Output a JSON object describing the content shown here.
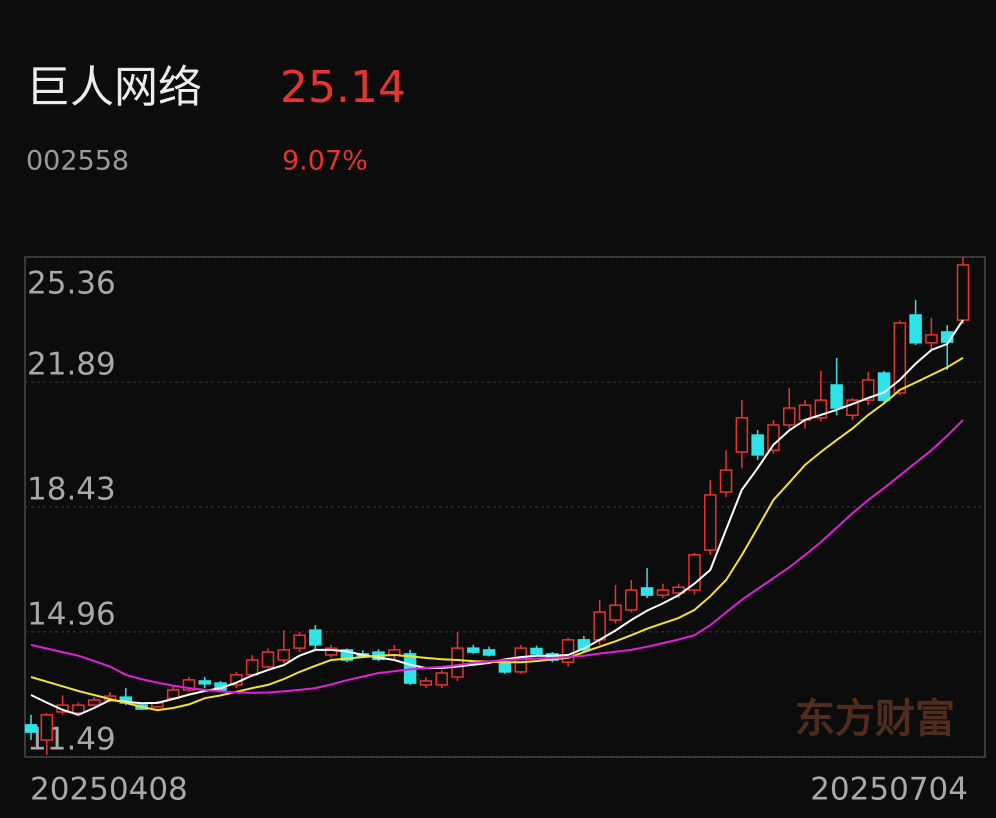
{
  "header": {
    "name": "巨人网络",
    "price": "25.14",
    "code": "002558",
    "change": "9.07%"
  },
  "chart_data": {
    "type": "candlestick",
    "watermark": "东方财富",
    "ylim": [
      11.49,
      25.36
    ],
    "yticks": [
      11.49,
      14.96,
      18.43,
      21.89,
      25.36
    ],
    "grid": true,
    "up_color": "#e8332e",
    "down_color": "#2fe3e8",
    "categories": [
      "20250408",
      null,
      null,
      null,
      null,
      null,
      null,
      null,
      null,
      null,
      null,
      null,
      null,
      null,
      null,
      null,
      null,
      null,
      null,
      null,
      null,
      null,
      null,
      null,
      null,
      null,
      null,
      null,
      null,
      null,
      null,
      null,
      null,
      null,
      null,
      null,
      null,
      null,
      null,
      null,
      null,
      null,
      null,
      null,
      null,
      null,
      null,
      null,
      null,
      null,
      null,
      null,
      null,
      null,
      null,
      null,
      null,
      null,
      null,
      "20250704"
    ],
    "open": [
      12.38,
      11.96,
      12.74,
      12.71,
      12.93,
      13.07,
      13.15,
      12.93,
      12.88,
      13.12,
      13.35,
      13.6,
      13.54,
      13.49,
      13.77,
      13.99,
      14.18,
      14.51,
      15.01,
      14.32,
      14.46,
      14.35,
      14.4,
      14.32,
      14.35,
      13.49,
      13.49,
      13.71,
      14.51,
      14.46,
      14.1,
      13.85,
      14.5,
      14.35,
      14.12,
      14.74,
      14.74,
      15.29,
      15.57,
      16.18,
      15.98,
      16.04,
      16.12,
      17.23,
      18.84,
      19.95,
      20.42,
      20.0,
      20.7,
      20.84,
      20.9,
      21.81,
      20.97,
      21.39,
      22.14,
      21.59,
      23.75,
      22.98,
      23.28,
      23.61
    ],
    "high": [
      12.66,
      12.7,
      13.2,
      13.0,
      13.15,
      13.29,
      13.4,
      12.95,
      13.05,
      13.49,
      13.71,
      13.71,
      13.6,
      13.85,
      14.32,
      14.5,
      15.0,
      14.96,
      15.15,
      14.6,
      14.5,
      14.45,
      14.48,
      14.6,
      14.46,
      13.7,
      13.9,
      14.96,
      14.6,
      14.55,
      14.15,
      14.6,
      14.58,
      14.4,
      14.8,
      14.85,
      15.85,
      16.26,
      16.4,
      16.73,
      16.3,
      16.3,
      17.15,
      19.17,
      20.0,
      21.39,
      20.56,
      20.84,
      21.73,
      21.39,
      22.2,
      22.56,
      21.45,
      22.17,
      22.2,
      23.6,
      24.17,
      23.67,
      23.47,
      25.36
    ],
    "low": [
      11.96,
      11.55,
      12.66,
      12.68,
      12.9,
      13.0,
      12.93,
      12.8,
      12.85,
      13.07,
      13.3,
      13.4,
      13.3,
      13.4,
      13.7,
      13.95,
      14.1,
      14.4,
      14.46,
      14.25,
      14.12,
      14.25,
      14.15,
      14.2,
      13.49,
      13.4,
      13.4,
      13.6,
      14.35,
      14.28,
      13.8,
      13.8,
      14.3,
      14.12,
      14.0,
      14.4,
      14.6,
      15.2,
      15.5,
      15.9,
      15.9,
      15.9,
      16.0,
      17.1,
      18.7,
      19.5,
      19.73,
      19.9,
      20.6,
      20.6,
      20.8,
      20.97,
      20.84,
      21.25,
      21.3,
      21.53,
      22.92,
      22.78,
      22.23,
      23.5
    ],
    "close": [
      12.18,
      12.66,
      12.93,
      12.93,
      13.07,
      13.18,
      12.99,
      12.82,
      12.99,
      13.35,
      13.63,
      13.52,
      13.35,
      13.77,
      14.18,
      14.4,
      14.46,
      14.87,
      14.6,
      14.51,
      14.18,
      14.3,
      14.2,
      14.46,
      13.54,
      13.6,
      13.82,
      14.51,
      14.4,
      14.32,
      13.85,
      14.51,
      14.35,
      14.18,
      14.74,
      14.46,
      15.51,
      15.7,
      16.12,
      15.98,
      16.12,
      16.2,
      17.1,
      18.76,
      19.45,
      20.9,
      19.87,
      20.7,
      21.17,
      21.25,
      21.39,
      21.17,
      21.39,
      21.95,
      21.39,
      23.53,
      22.98,
      23.2,
      23.0,
      25.14
    ],
    "series": [
      {
        "color": "#ffffff",
        "values": [
          13.21,
          13.0,
          12.8,
          12.66,
          12.85,
          13.07,
          13.02,
          12.98,
          12.99,
          13.1,
          13.22,
          13.32,
          13.4,
          13.55,
          13.75,
          13.9,
          14.04,
          14.3,
          14.46,
          14.46,
          14.42,
          14.32,
          14.25,
          14.18,
          14.05,
          13.96,
          13.96,
          14.0,
          14.05,
          14.1,
          14.2,
          14.26,
          14.3,
          14.3,
          14.32,
          14.5,
          14.74,
          15.0,
          15.29,
          15.55,
          15.75,
          15.98,
          16.3,
          16.68,
          17.8,
          18.9,
          19.5,
          20.15,
          20.55,
          20.84,
          20.98,
          21.12,
          21.28,
          21.45,
          21.6,
          21.95,
          22.4,
          22.78,
          22.95,
          23.61
        ]
      },
      {
        "color": "#f2e230",
        "values": [
          13.71,
          13.58,
          13.45,
          13.32,
          13.21,
          13.1,
          12.99,
          12.88,
          12.79,
          12.85,
          12.95,
          13.12,
          13.2,
          13.3,
          13.4,
          13.49,
          13.65,
          13.85,
          14.02,
          14.18,
          14.22,
          14.26,
          14.3,
          14.32,
          14.28,
          14.24,
          14.2,
          14.18,
          14.15,
          14.13,
          14.12,
          14.12,
          14.15,
          14.2,
          14.24,
          14.4,
          14.55,
          14.7,
          14.87,
          15.05,
          15.2,
          15.35,
          15.57,
          15.95,
          16.4,
          17.09,
          17.85,
          18.62,
          19.1,
          19.59,
          19.95,
          20.28,
          20.6,
          20.98,
          21.3,
          21.67,
          21.88,
          22.09,
          22.3,
          22.56
        ]
      },
      {
        "color": "#e020d8",
        "values": [
          14.6,
          14.5,
          14.4,
          14.3,
          14.15,
          14.0,
          13.77,
          13.65,
          13.55,
          13.47,
          13.4,
          13.35,
          13.31,
          13.28,
          13.27,
          13.28,
          13.31,
          13.35,
          13.4,
          13.5,
          13.62,
          13.72,
          13.82,
          13.87,
          13.92,
          13.96,
          13.99,
          14.04,
          14.1,
          14.14,
          14.18,
          14.2,
          14.22,
          14.24,
          14.26,
          14.3,
          14.36,
          14.41,
          14.46,
          14.55,
          14.65,
          14.75,
          14.87,
          15.15,
          15.5,
          15.85,
          16.15,
          16.45,
          16.75,
          17.09,
          17.45,
          17.85,
          18.25,
          18.62,
          18.95,
          19.3,
          19.65,
          20.0,
          20.4,
          20.84
        ]
      }
    ]
  }
}
